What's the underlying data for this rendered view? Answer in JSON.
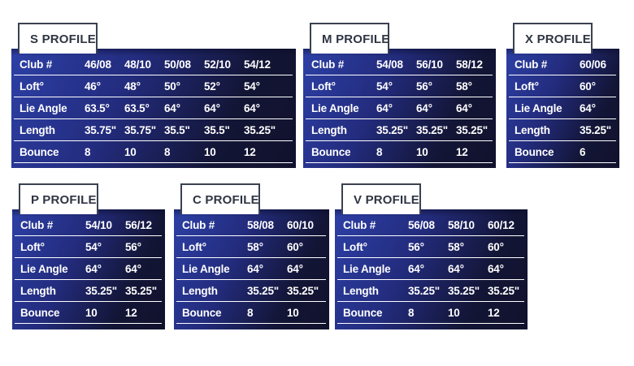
{
  "colors": {
    "page_bg": "#FFFFFF",
    "table_bg_bright": "#2D40A6",
    "table_bg_mid": "#232C7E",
    "table_bg_dark": "#131536",
    "table_bg_darkest": "#10122C",
    "row_divider": "#FFFFFF",
    "table_text": "#FFFFFF",
    "tab_bg": "#FFFFFF",
    "tab_border": "#3A4150",
    "tab_text": "#2F3542"
  },
  "row_labels": [
    "Club #",
    "Loft°",
    "Lie Angle",
    "Length",
    "Bounce"
  ],
  "tables": [
    {
      "id": "s-profile",
      "title": "S PROFILE",
      "rows": [
        {
          "label": "Club #",
          "values": [
            "46/08",
            "48/10",
            "50/08",
            "52/10",
            "54/12"
          ]
        },
        {
          "label": "Loft°",
          "values": [
            "46°",
            "48°",
            "50°",
            "52°",
            "54°"
          ]
        },
        {
          "label": "Lie Angle",
          "values": [
            "63.5°",
            "63.5°",
            "64°",
            "64°",
            "64°"
          ]
        },
        {
          "label": "Length",
          "values": [
            "35.75\"",
            "35.75\"",
            "35.5\"",
            "35.5\"",
            "35.25\""
          ]
        },
        {
          "label": "Bounce",
          "values": [
            "8",
            "10",
            "8",
            "10",
            "12"
          ]
        }
      ]
    },
    {
      "id": "m-profile",
      "title": "M PROFILE",
      "rows": [
        {
          "label": "Club #",
          "values": [
            "54/08",
            "56/10",
            "58/12"
          ]
        },
        {
          "label": "Loft°",
          "values": [
            "54°",
            "56°",
            "58°"
          ]
        },
        {
          "label": "Lie Angle",
          "values": [
            "64°",
            "64°",
            "64°"
          ]
        },
        {
          "label": "Length",
          "values": [
            "35.25\"",
            "35.25\"",
            "35.25\""
          ]
        },
        {
          "label": "Bounce",
          "values": [
            "8",
            "10",
            "12"
          ]
        }
      ]
    },
    {
      "id": "x-profile",
      "title": "X PROFILE",
      "rows": [
        {
          "label": "Club #",
          "values": [
            "60/06"
          ]
        },
        {
          "label": "Loft°",
          "values": [
            "60°"
          ]
        },
        {
          "label": "Lie Angle",
          "values": [
            "64°"
          ]
        },
        {
          "label": "Length",
          "values": [
            "35.25\""
          ]
        },
        {
          "label": "Bounce",
          "values": [
            "6"
          ]
        }
      ]
    },
    {
      "id": "p-profile",
      "title": "P PROFILE",
      "rows": [
        {
          "label": "Club #",
          "values": [
            "54/10",
            "56/12"
          ]
        },
        {
          "label": "Loft°",
          "values": [
            "54°",
            "56°"
          ]
        },
        {
          "label": "Lie Angle",
          "values": [
            "64°",
            "64°"
          ]
        },
        {
          "label": "Length",
          "values": [
            "35.25\"",
            "35.25\""
          ]
        },
        {
          "label": "Bounce",
          "values": [
            "10",
            "12"
          ]
        }
      ]
    },
    {
      "id": "c-profile",
      "title": "C PROFILE",
      "rows": [
        {
          "label": "Club #",
          "values": [
            "58/08",
            "60/10"
          ]
        },
        {
          "label": "Loft°",
          "values": [
            "58°",
            "60°"
          ]
        },
        {
          "label": "Lie Angle",
          "values": [
            "64°",
            "64°"
          ]
        },
        {
          "label": "Length",
          "values": [
            "35.25\"",
            "35.25\""
          ]
        },
        {
          "label": "Bounce",
          "values": [
            "8",
            "10"
          ]
        }
      ]
    },
    {
      "id": "v-profile",
      "title": "V PROFILE",
      "rows": [
        {
          "label": "Club #",
          "values": [
            "56/08",
            "58/10",
            "60/12"
          ]
        },
        {
          "label": "Loft°",
          "values": [
            "56°",
            "58°",
            "60°"
          ]
        },
        {
          "label": "Lie Angle",
          "values": [
            "64°",
            "64°",
            "64°"
          ]
        },
        {
          "label": "Length",
          "values": [
            "35.25\"",
            "35.25\"",
            "35.25\""
          ]
        },
        {
          "label": "Bounce",
          "values": [
            "8",
            "10",
            "12"
          ]
        }
      ]
    }
  ]
}
